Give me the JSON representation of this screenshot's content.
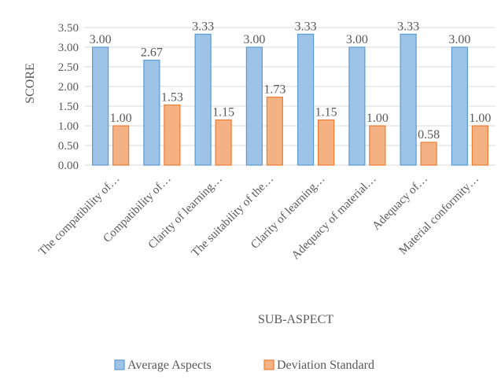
{
  "chart_data": {
    "type": "bar",
    "title": "",
    "xlabel": "SUB-ASPECT",
    "ylabel": "SCORE",
    "ylim": [
      0,
      3.5
    ],
    "yticks": [
      "0.00",
      "0.50",
      "1.00",
      "1.50",
      "2.00",
      "2.50",
      "3.00",
      "3.50"
    ],
    "grid": true,
    "legend_position": "bottom",
    "categories": [
      "The compatibility of…",
      "Compatibility of…",
      "Clarity of learning…",
      "The suitability of the…",
      "Clarity of learning…",
      "Adequacy of material…",
      "Adequacy of…",
      "Material conformity…"
    ],
    "series": [
      {
        "name": "Average Aspects",
        "values": [
          3.0,
          2.67,
          3.33,
          3.0,
          3.33,
          3.0,
          3.33,
          3.0
        ],
        "labels": [
          "3.00",
          "2.67",
          "3.33",
          "3.00",
          "3.33",
          "3.00",
          "3.33",
          "3.00"
        ],
        "color": "#9dc3e6",
        "stroke": "#5b9bd5"
      },
      {
        "name": "Deviation Standard",
        "values": [
          1.0,
          1.53,
          1.15,
          1.73,
          1.15,
          1.0,
          0.58,
          1.0
        ],
        "labels": [
          "1.00",
          "1.53",
          "1.15",
          "1.73",
          "1.15",
          "1.00",
          "0.58",
          "1.00"
        ],
        "color": "#f4b183",
        "stroke": "#ed7d31"
      }
    ]
  }
}
